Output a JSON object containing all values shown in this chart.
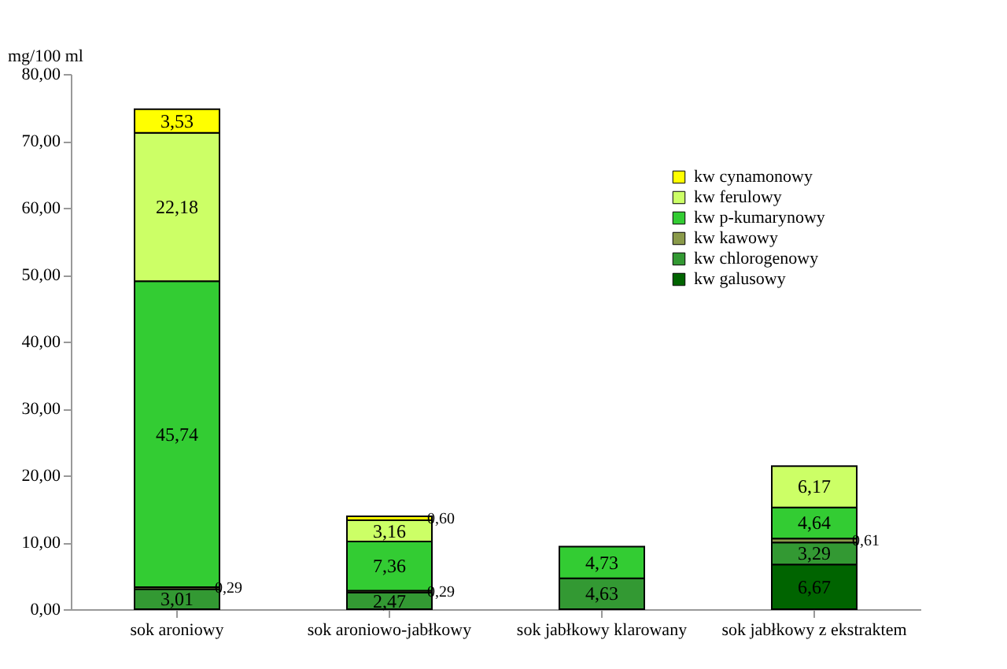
{
  "chart_data": {
    "type": "bar",
    "stacked": true,
    "ylabel": "mg/100 ml",
    "categories": [
      "sok aroniowy",
      "sok aroniowo-jabłkowy",
      "sok jabłkowy klarowany",
      "sok jabłkowy z ekstraktem"
    ],
    "ylim": [
      0,
      80
    ],
    "yticks": [
      {
        "value": 0,
        "label": "0,00"
      },
      {
        "value": 10,
        "label": "10,00"
      },
      {
        "value": 20,
        "label": "20,00"
      },
      {
        "value": 30,
        "label": "30,00"
      },
      {
        "value": 40,
        "label": "40,00"
      },
      {
        "value": 50,
        "label": "50,00"
      },
      {
        "value": 60,
        "label": "60,00"
      },
      {
        "value": 70,
        "label": "70,00"
      },
      {
        "value": 80,
        "label": "80,00"
      }
    ],
    "grid": false,
    "legend": "top right",
    "series": [
      {
        "name": "kw galusowy",
        "color": "#006400",
        "values": [
          null,
          null,
          null,
          6.67
        ],
        "value_labels": [
          null,
          null,
          null,
          "6,67"
        ]
      },
      {
        "name": "kw chlorogenowy",
        "color": "#339933",
        "values": [
          3.01,
          2.47,
          4.63,
          3.29
        ],
        "value_labels": [
          "3,01",
          "2,47",
          "4,63",
          "3,29"
        ]
      },
      {
        "name": "kw kawowy",
        "color": "#8a9a4a",
        "values": [
          0.29,
          0.29,
          null,
          0.61
        ],
        "value_labels": [
          "0,29",
          "0,29",
          null,
          "0,61"
        ]
      },
      {
        "name": "kw p-kumarynowy",
        "color": "#33cc33",
        "values": [
          45.74,
          7.36,
          4.73,
          4.64
        ],
        "value_labels": [
          "45,74",
          "7,36",
          "4,73",
          "4,64"
        ]
      },
      {
        "name": "kw ferulowy",
        "color": "#ccff66",
        "values": [
          22.18,
          3.16,
          null,
          6.17
        ],
        "value_labels": [
          "22,18",
          "3,16",
          null,
          "6,17"
        ]
      },
      {
        "name": "kw cynamonowy",
        "color": "#ffff00",
        "values": [
          3.53,
          0.6,
          null,
          null
        ],
        "value_labels": [
          "3,53",
          "0,60",
          null,
          null
        ]
      }
    ]
  }
}
